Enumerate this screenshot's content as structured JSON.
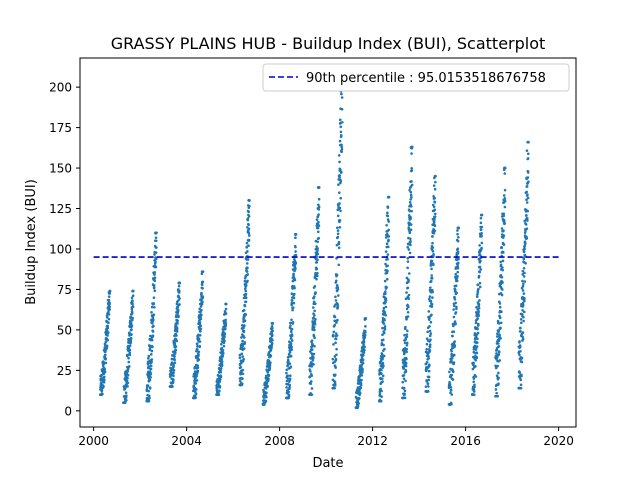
{
  "chart_data": {
    "type": "scatter",
    "title": "GRASSY PLAINS HUB - Buildup Index (BUI), Scatterplot",
    "xlabel": "Date",
    "ylabel": "Buildup Index (BUI)",
    "xlim": [
      "1999-06-01",
      "2020-10-01"
    ],
    "ylim": [
      -10,
      218
    ],
    "x_ticks": [
      "2000",
      "2004",
      "2008",
      "2012",
      "2016",
      "2020"
    ],
    "y_ticks": [
      0,
      25,
      50,
      75,
      100,
      125,
      150,
      175,
      200
    ],
    "grid": false,
    "legend_position": "top-right",
    "reference_line": {
      "label": "90th percentile : 95.0153518676758",
      "value": 95.0153518676758,
      "x_range": [
        "2000-01-01",
        "2020-01-01"
      ],
      "color": "#0000cc",
      "style": "dashed"
    },
    "point_color": "#1f77b4",
    "series": [
      {
        "seasons": [
          {
            "start": "2000-04-15",
            "end": "2000-09-15",
            "min": 10,
            "max": 74
          },
          {
            "start": "2001-04-15",
            "end": "2001-09-15",
            "min": 5,
            "max": 74
          },
          {
            "start": "2002-04-15",
            "end": "2002-09-15",
            "min": 6,
            "max": 110
          },
          {
            "start": "2003-04-15",
            "end": "2003-09-15",
            "min": 15,
            "max": 79
          },
          {
            "start": "2004-04-15",
            "end": "2004-09-15",
            "min": 8,
            "max": 86
          },
          {
            "start": "2005-04-15",
            "end": "2005-09-15",
            "min": 10,
            "max": 66
          },
          {
            "start": "2006-04-15",
            "end": "2006-09-15",
            "min": 16,
            "max": 130
          },
          {
            "start": "2007-04-15",
            "end": "2007-09-15",
            "min": 4,
            "max": 54
          },
          {
            "start": "2008-04-15",
            "end": "2008-09-15",
            "min": 8,
            "max": 109
          },
          {
            "start": "2009-04-15",
            "end": "2009-09-15",
            "min": 10,
            "max": 138
          },
          {
            "start": "2010-04-15",
            "end": "2010-09-15",
            "min": 14,
            "max": 206
          },
          {
            "start": "2011-04-15",
            "end": "2011-09-15",
            "min": 2,
            "max": 57
          },
          {
            "start": "2012-04-15",
            "end": "2012-09-15",
            "min": 6,
            "max": 132
          },
          {
            "start": "2013-04-15",
            "end": "2013-09-15",
            "min": 8,
            "max": 163
          },
          {
            "start": "2014-04-15",
            "end": "2014-09-15",
            "min": 12,
            "max": 145
          },
          {
            "start": "2015-04-15",
            "end": "2015-09-15",
            "min": 4,
            "max": 113
          },
          {
            "start": "2016-04-15",
            "end": "2016-09-15",
            "min": 10,
            "max": 121
          },
          {
            "start": "2017-04-15",
            "end": "2017-09-15",
            "min": 9,
            "max": 150
          },
          {
            "start": "2018-04-15",
            "end": "2018-09-15",
            "min": 14,
            "max": 166
          }
        ]
      }
    ]
  }
}
